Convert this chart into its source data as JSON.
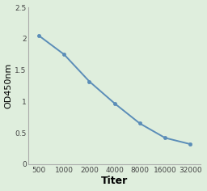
{
  "x_positions": [
    1,
    2,
    3,
    4,
    5,
    6,
    7
  ],
  "x": [
    500,
    1000,
    2000,
    4000,
    8000,
    16000,
    32000
  ],
  "y": [
    2.05,
    1.75,
    1.32,
    0.97,
    0.65,
    0.42,
    0.32
  ],
  "xlabel": "Titer",
  "ylabel": "OD450nm",
  "ylim": [
    0,
    2.5
  ],
  "yticks": [
    0,
    0.5,
    1.0,
    1.5,
    2.0,
    2.5
  ],
  "ytick_labels": [
    "0",
    "0.5",
    "1",
    "1.5",
    "2",
    "2.5"
  ],
  "xtick_labels": [
    "500",
    "1000",
    "2000",
    "4000",
    "8000",
    "16000",
    "32000"
  ],
  "line_color": "#5b8db8",
  "marker_color": "#5b8db8",
  "background_color": "#dfeedd",
  "plot_bg_color": "#dfeedd",
  "xlabel_fontsize": 9,
  "ylabel_fontsize": 8,
  "tick_fontsize": 6.5,
  "xlabel_fontweight": "bold"
}
